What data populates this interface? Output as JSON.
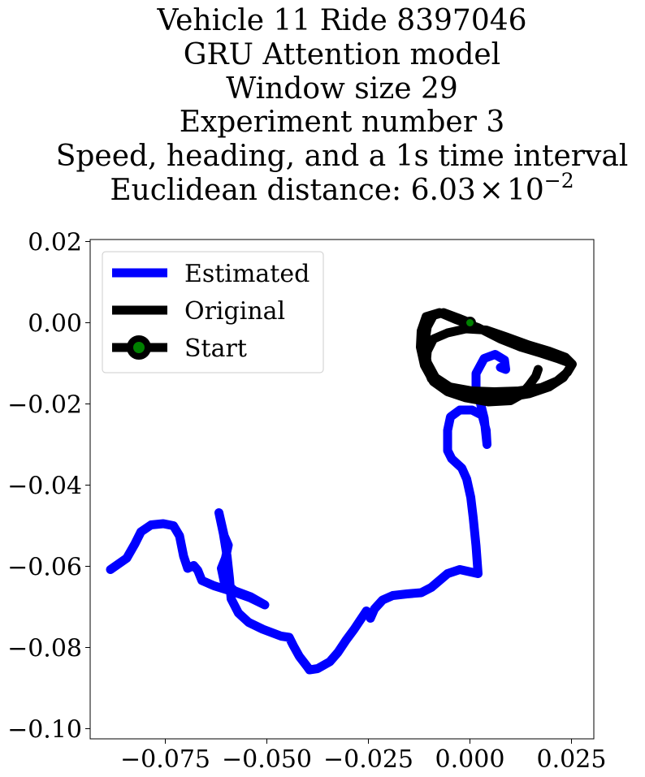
{
  "chart_data": {
    "type": "line",
    "title_lines": [
      "Vehicle 11 Ride 8397046",
      "GRU Attention model",
      "Window size 29",
      "Experiment number 3",
      "Speed, heading, and a 1s time interval"
    ],
    "title_distance": {
      "prefix": "Euclidean distance: ",
      "mantissa": "6.03",
      "times": "×",
      "base": "10",
      "exponent": "−2"
    },
    "xlabel": "",
    "ylabel": "",
    "xlim": [
      -0.0935,
      0.0305
    ],
    "ylim": [
      -0.1025,
      0.0205
    ],
    "xticks": [
      -0.075,
      -0.05,
      -0.025,
      0.0,
      0.025
    ],
    "xtick_labels": [
      "−0.075",
      "−0.050",
      "−0.025",
      "0.000",
      "0.025"
    ],
    "yticks": [
      0.02,
      0.0,
      -0.02,
      -0.04,
      -0.06,
      -0.08,
      -0.1
    ],
    "ytick_labels": [
      "0.02",
      "0.00",
      "−0.02",
      "−0.04",
      "−0.06",
      "−0.08",
      "−0.10"
    ],
    "grid": false,
    "legend_placement": "top-left",
    "legend": [
      "Estimated",
      "Original",
      "Start"
    ],
    "series": [
      {
        "name": "Estimated",
        "color": "#0000ff",
        "points": [
          [
            -0.0885,
            -0.0608
          ],
          [
            -0.0845,
            -0.058
          ],
          [
            -0.0825,
            -0.0545
          ],
          [
            -0.081,
            -0.0515
          ],
          [
            -0.0785,
            -0.0498
          ],
          [
            -0.0755,
            -0.0495
          ],
          [
            -0.073,
            -0.05
          ],
          [
            -0.0715,
            -0.0525
          ],
          [
            -0.0705,
            -0.0575
          ],
          [
            -0.0695,
            -0.0605
          ],
          [
            -0.068,
            -0.0598
          ],
          [
            -0.067,
            -0.061
          ],
          [
            -0.066,
            -0.0635
          ],
          [
            -0.063,
            -0.0648
          ],
          [
            -0.0585,
            -0.0662
          ],
          [
            -0.054,
            -0.0678
          ],
          [
            -0.0505,
            -0.0695
          ],
          [
            -0.054,
            -0.0675
          ],
          [
            -0.058,
            -0.066
          ],
          [
            -0.0605,
            -0.0638
          ],
          [
            -0.0612,
            -0.0605
          ],
          [
            -0.0602,
            -0.058
          ],
          [
            -0.0595,
            -0.0548
          ],
          [
            -0.0605,
            -0.0525
          ],
          [
            -0.0618,
            -0.0468
          ],
          [
            -0.0607,
            -0.052
          ],
          [
            -0.0598,
            -0.0575
          ],
          [
            -0.0592,
            -0.063
          ],
          [
            -0.0588,
            -0.068
          ],
          [
            -0.057,
            -0.0715
          ],
          [
            -0.0545,
            -0.0738
          ],
          [
            -0.051,
            -0.0755
          ],
          [
            -0.0465,
            -0.0772
          ],
          [
            -0.0445,
            -0.0775
          ],
          [
            -0.0435,
            -0.0795
          ],
          [
            -0.042,
            -0.0822
          ],
          [
            -0.04,
            -0.0848
          ],
          [
            -0.0395,
            -0.0855
          ],
          [
            -0.0375,
            -0.0852
          ],
          [
            -0.0345,
            -0.0835
          ],
          [
            -0.0325,
            -0.0812
          ],
          [
            -0.0305,
            -0.0782
          ],
          [
            -0.0285,
            -0.0755
          ],
          [
            -0.0265,
            -0.0725
          ],
          [
            -0.0255,
            -0.071
          ],
          [
            -0.0245,
            -0.0728
          ],
          [
            -0.0235,
            -0.0705
          ],
          [
            -0.0215,
            -0.0683
          ],
          [
            -0.019,
            -0.0672
          ],
          [
            -0.0155,
            -0.0668
          ],
          [
            -0.012,
            -0.0665
          ],
          [
            -0.0095,
            -0.0652
          ],
          [
            -0.0075,
            -0.0635
          ],
          [
            -0.0055,
            -0.0618
          ],
          [
            -0.0025,
            -0.0608
          ],
          [
            0.002,
            -0.0618
          ],
          [
            0.0015,
            -0.055
          ],
          [
            0.0008,
            -0.048
          ],
          [
            0.0002,
            -0.043
          ],
          [
            -0.0008,
            -0.0385
          ],
          [
            -0.002,
            -0.0358
          ],
          [
            -0.0045,
            -0.0335
          ],
          [
            -0.0055,
            -0.0315
          ],
          [
            -0.0055,
            -0.0265
          ],
          [
            -0.0048,
            -0.0232
          ],
          [
            -0.0025,
            -0.0215
          ],
          [
            0.0005,
            -0.0215
          ],
          [
            0.003,
            -0.0228
          ],
          [
            0.004,
            -0.0265
          ],
          [
            0.0042,
            -0.03
          ],
          [
            0.0035,
            -0.0235
          ],
          [
            0.0025,
            -0.0195
          ],
          [
            0.0015,
            -0.0165
          ],
          [
            0.0015,
            -0.0125
          ],
          [
            0.0035,
            -0.0088
          ],
          [
            0.0062,
            -0.0078
          ],
          [
            0.0085,
            -0.0092
          ],
          [
            0.0088,
            -0.0115
          ],
          [
            0.0075,
            -0.011
          ]
        ]
      },
      {
        "name": "Original",
        "color": "#000000",
        "points": [
          [
            0.0,
            0.0
          ],
          [
            -0.003,
            0.0012
          ],
          [
            -0.0065,
            0.0025
          ],
          [
            -0.009,
            0.0018
          ],
          [
            -0.0105,
            -0.001
          ],
          [
            -0.0112,
            -0.0055
          ],
          [
            -0.0105,
            -0.0098
          ],
          [
            -0.0085,
            -0.0135
          ],
          [
            -0.005,
            -0.0158
          ],
          [
            0.0005,
            -0.0168
          ],
          [
            0.006,
            -0.017
          ],
          [
            0.012,
            -0.0168
          ],
          [
            0.0175,
            -0.016
          ],
          [
            0.0215,
            -0.0143
          ],
          [
            0.024,
            -0.0122
          ],
          [
            0.0252,
            -0.0102
          ],
          [
            0.0235,
            -0.0085
          ],
          [
            0.0195,
            -0.007
          ],
          [
            0.0145,
            -0.0055
          ],
          [
            0.009,
            -0.0035
          ],
          [
            0.004,
            -0.0018
          ],
          [
            -0.001,
            -0.0015
          ],
          [
            -0.0055,
            -0.0025
          ],
          [
            -0.009,
            -0.004
          ],
          [
            -0.0105,
            -0.007
          ],
          [
            -0.0108,
            -0.0105
          ],
          [
            -0.0095,
            -0.0138
          ],
          [
            -0.0065,
            -0.0162
          ],
          [
            -0.0025,
            -0.018
          ],
          [
            0.0025,
            -0.0188
          ],
          [
            0.0085,
            -0.0185
          ],
          [
            0.0145,
            -0.0175
          ],
          [
            0.0195,
            -0.0158
          ],
          [
            0.023,
            -0.0135
          ],
          [
            0.0248,
            -0.0108
          ],
          [
            0.0242,
            -0.0098
          ],
          [
            0.0215,
            -0.0088
          ],
          [
            0.0175,
            -0.0075
          ],
          [
            0.0125,
            -0.006
          ],
          [
            0.0075,
            -0.004
          ],
          [
            0.002,
            -0.0012
          ],
          [
            -0.0035,
            0.0008
          ],
          [
            -0.0075,
            0.0025
          ],
          [
            -0.0108,
            0.0015
          ],
          [
            -0.012,
            -0.002
          ],
          [
            -0.0122,
            -0.006
          ],
          [
            -0.0112,
            -0.0105
          ],
          [
            -0.009,
            -0.0145
          ],
          [
            -0.0055,
            -0.017
          ],
          [
            -0.001,
            -0.0185
          ],
          [
            0.0045,
            -0.0195
          ],
          [
            0.01,
            -0.0192
          ],
          [
            0.0125,
            -0.0178
          ],
          [
            0.0145,
            -0.0155
          ],
          [
            0.0162,
            -0.0132
          ],
          [
            0.0168,
            -0.0115
          ]
        ]
      }
    ],
    "start_point": {
      "name": "Start",
      "x": 0.0,
      "y": 0.0,
      "marker_color": "#008000",
      "edge_color": "#000000"
    }
  }
}
